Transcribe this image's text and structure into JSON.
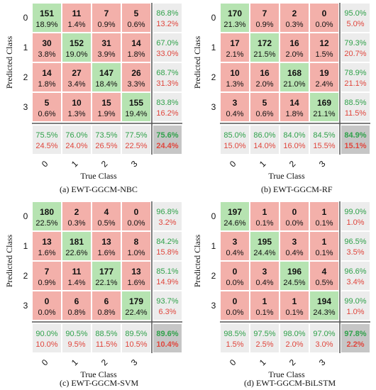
{
  "colors": {
    "correct": "#b6e3b1",
    "wrong": "#f3b0aa",
    "summary": "#ececec",
    "overall": "#c6c6c6",
    "good_text": "#2fa14a",
    "bad_text": "#e0453c",
    "text": "#111111"
  },
  "chart_data": [
    {
      "type": "heatmap",
      "caption": "(a)   EWT-GGCM-NBC",
      "ylabel": "Predicted Class",
      "xlabel": "True Class",
      "row_labels": [
        "0",
        "1",
        "2",
        "3"
      ],
      "col_labels": [
        "0",
        "1",
        "2",
        "3"
      ],
      "cells": [
        [
          {
            "n": "151",
            "p": "18.9%"
          },
          {
            "n": "11",
            "p": "1.4%"
          },
          {
            "n": "7",
            "p": "0.9%"
          },
          {
            "n": "5",
            "p": "0.6%"
          }
        ],
        [
          {
            "n": "30",
            "p": "3.8%"
          },
          {
            "n": "152",
            "p": "19.0%"
          },
          {
            "n": "31",
            "p": "3.9%"
          },
          {
            "n": "14",
            "p": "1.8%"
          }
        ],
        [
          {
            "n": "14",
            "p": "1.8%"
          },
          {
            "n": "27",
            "p": "3.4%"
          },
          {
            "n": "147",
            "p": "18.4%"
          },
          {
            "n": "26",
            "p": "3.3%"
          }
        ],
        [
          {
            "n": "5",
            "p": "0.6%"
          },
          {
            "n": "10",
            "p": "1.3%"
          },
          {
            "n": "15",
            "p": "1.9%"
          },
          {
            "n": "155",
            "p": "19.4%"
          }
        ]
      ],
      "row_summary": [
        [
          "86.8%",
          "13.2%"
        ],
        [
          "67.0%",
          "33.0%"
        ],
        [
          "68.7%",
          "31.3%"
        ],
        [
          "83.8%",
          "16.2%"
        ]
      ],
      "col_summary": [
        [
          "75.5%",
          "24.5%"
        ],
        [
          "76.0%",
          "24.0%"
        ],
        [
          "73.5%",
          "26.5%"
        ],
        [
          "77.5%",
          "22.5%"
        ]
      ],
      "overall": [
        "75.6%",
        "24.4%"
      ]
    },
    {
      "type": "heatmap",
      "caption": "(b) EWT-GGCM-RF",
      "ylabel": "Predicted Class",
      "xlabel": "True Class",
      "row_labels": [
        "0",
        "1",
        "2",
        "3"
      ],
      "col_labels": [
        "0",
        "1",
        "2",
        "3"
      ],
      "cells": [
        [
          {
            "n": "170",
            "p": "21.3%"
          },
          {
            "n": "7",
            "p": "0.9%"
          },
          {
            "n": "2",
            "p": "0.3%"
          },
          {
            "n": "0",
            "p": "0.0%"
          }
        ],
        [
          {
            "n": "17",
            "p": "2.1%"
          },
          {
            "n": "172",
            "p": "21.5%"
          },
          {
            "n": "16",
            "p": "2.0%"
          },
          {
            "n": "12",
            "p": "1.5%"
          }
        ],
        [
          {
            "n": "10",
            "p": "1.3%"
          },
          {
            "n": "16",
            "p": "2.0%"
          },
          {
            "n": "168",
            "p": "21.0%"
          },
          {
            "n": "19",
            "p": "2.4%"
          }
        ],
        [
          {
            "n": "3",
            "p": "0.4%"
          },
          {
            "n": "5",
            "p": "0.6%"
          },
          {
            "n": "14",
            "p": "1.8%"
          },
          {
            "n": "169",
            "p": "21.1%"
          }
        ]
      ],
      "row_summary": [
        [
          "95.0%",
          "5.0%"
        ],
        [
          "79.3%",
          "20.7%"
        ],
        [
          "78.9%",
          "21.1%"
        ],
        [
          "88.5%",
          "11.5%"
        ]
      ],
      "col_summary": [
        [
          "85.0%",
          "15.0%"
        ],
        [
          "86.0%",
          "14.0%"
        ],
        [
          "84.0%",
          "16.0%"
        ],
        [
          "84.5%",
          "15.5%"
        ]
      ],
      "overall": [
        "84.9%",
        "15.1%"
      ]
    },
    {
      "type": "heatmap",
      "caption": "(c) EWT-GGCM-SVM",
      "ylabel": "Predicted Class",
      "xlabel": "True Class",
      "row_labels": [
        "0",
        "1",
        "2",
        "3"
      ],
      "col_labels": [
        "0",
        "1",
        "2",
        "3"
      ],
      "cells": [
        [
          {
            "n": "180",
            "p": "22.5%"
          },
          {
            "n": "2",
            "p": "0.3%"
          },
          {
            "n": "4",
            "p": "0.5%"
          },
          {
            "n": "0",
            "p": "0.0%"
          }
        ],
        [
          {
            "n": "13",
            "p": "1.6%"
          },
          {
            "n": "181",
            "p": "22.6%"
          },
          {
            "n": "13",
            "p": "1.6%"
          },
          {
            "n": "8",
            "p": "1.0%"
          }
        ],
        [
          {
            "n": "7",
            "p": "0.9%"
          },
          {
            "n": "11",
            "p": "1.4%"
          },
          {
            "n": "177",
            "p": "22.1%"
          },
          {
            "n": "13",
            "p": "1.6%"
          }
        ],
        [
          {
            "n": "0",
            "p": "0.0%"
          },
          {
            "n": "6",
            "p": "0.8%"
          },
          {
            "n": "6",
            "p": "0.8%"
          },
          {
            "n": "179",
            "p": "22.4%"
          }
        ]
      ],
      "row_summary": [
        [
          "96.8%",
          "3.2%"
        ],
        [
          "84.2%",
          "15.8%"
        ],
        [
          "85.1%",
          "14.9%"
        ],
        [
          "93.7%",
          "6.3%"
        ]
      ],
      "col_summary": [
        [
          "90.0%",
          "10.0%"
        ],
        [
          "90.5%",
          "9.5%"
        ],
        [
          "88.5%",
          "11.5%"
        ],
        [
          "89.5%",
          "10.5%"
        ]
      ],
      "overall": [
        "89.6%",
        "10.4%"
      ]
    },
    {
      "type": "heatmap",
      "caption": "(d) EWT-GGCM-BiLSTM",
      "ylabel": "Predicted Class",
      "xlabel": "True Class",
      "row_labels": [
        "0",
        "1",
        "2",
        "3"
      ],
      "col_labels": [
        "0",
        "1",
        "2",
        "3"
      ],
      "cells": [
        [
          {
            "n": "197",
            "p": "24.6%"
          },
          {
            "n": "1",
            "p": "0.1%"
          },
          {
            "n": "0",
            "p": "0.0%"
          },
          {
            "n": "1",
            "p": "0.1%"
          }
        ],
        [
          {
            "n": "3",
            "p": "0.4%"
          },
          {
            "n": "195",
            "p": "24.4%"
          },
          {
            "n": "3",
            "p": "0.4%"
          },
          {
            "n": "1",
            "p": "0.1%"
          }
        ],
        [
          {
            "n": "0",
            "p": "0.0%"
          },
          {
            "n": "3",
            "p": "0.4%"
          },
          {
            "n": "196",
            "p": "24.5%"
          },
          {
            "n": "4",
            "p": "0.5%"
          }
        ],
        [
          {
            "n": "0",
            "p": "0.0%"
          },
          {
            "n": "1",
            "p": "0.1%"
          },
          {
            "n": "1",
            "p": "0.1%"
          },
          {
            "n": "194",
            "p": "24.3%"
          }
        ]
      ],
      "row_summary": [
        [
          "99.0%",
          "1.0%"
        ],
        [
          "96.5%",
          "3.5%"
        ],
        [
          "96.6%",
          "3.4%"
        ],
        [
          "99.0%",
          "1.0%"
        ]
      ],
      "col_summary": [
        [
          "98.5%",
          "1.5%"
        ],
        [
          "97.5%",
          "2.5%"
        ],
        [
          "98.0%",
          "2.0%"
        ],
        [
          "97.0%",
          "3.0%"
        ]
      ],
      "overall": [
        "97.8%",
        "2.2%"
      ]
    }
  ]
}
